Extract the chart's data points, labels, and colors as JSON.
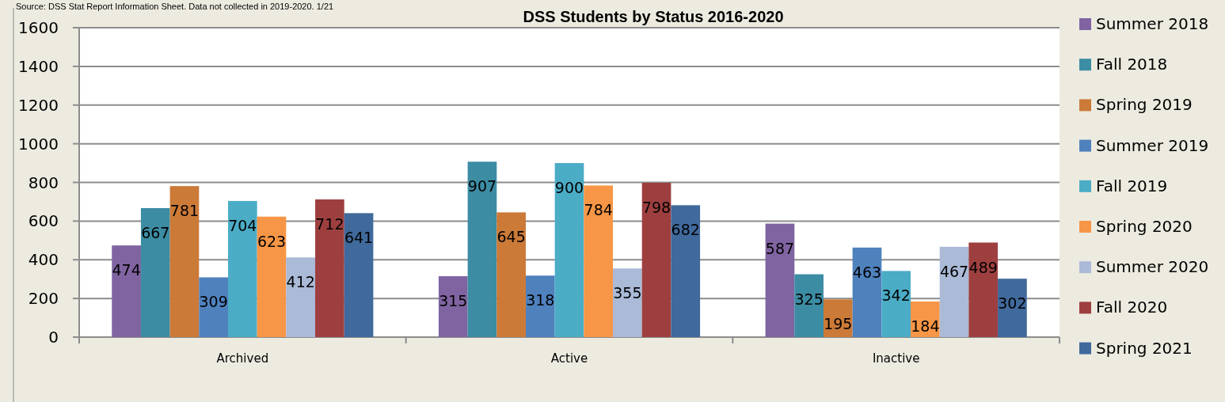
{
  "chart_data": {
    "type": "bar",
    "title": "DSS Students by Status 2016-2020",
    "annotations": [
      "Source: DSS Stat Report Information Sheet. Data not collected in 2019-2020. 1/21"
    ],
    "categories": [
      "Archived",
      "Active",
      "Inactive"
    ],
    "series": [
      {
        "name": "Summer 2018",
        "color": "#8064a2",
        "values": [
          474,
          315,
          587
        ]
      },
      {
        "name": "Fall 2018",
        "color": "#3c8ca3",
        "values": [
          667,
          907,
          325
        ]
      },
      {
        "name": "Spring 2019",
        "color": "#cc7a38",
        "values": [
          781,
          645,
          195
        ]
      },
      {
        "name": "Summer 2019",
        "color": "#4f81bd",
        "values": [
          309,
          318,
          463
        ]
      },
      {
        "name": "Fall 2019",
        "color": "#4bacc6",
        "values": [
          704,
          900,
          342
        ]
      },
      {
        "name": "Spring 2020",
        "color": "#f79646",
        "values": [
          623,
          784,
          184
        ]
      },
      {
        "name": "Summer 2020",
        "color": "#aabad7",
        "values": [
          412,
          355,
          467
        ]
      },
      {
        "name": "Fall 2020",
        "color": "#9e3f3f",
        "values": [
          712,
          798,
          489
        ]
      },
      {
        "name": "Spring 2021",
        "color": "#40699c",
        "values": [
          641,
          682,
          302
        ]
      }
    ],
    "ylim": [
      0,
      1600
    ],
    "yticks": [
      0,
      200,
      400,
      600,
      800,
      1000,
      1200,
      1400,
      1600
    ],
    "grid": "y",
    "legend": "right",
    "data_labels": true
  }
}
